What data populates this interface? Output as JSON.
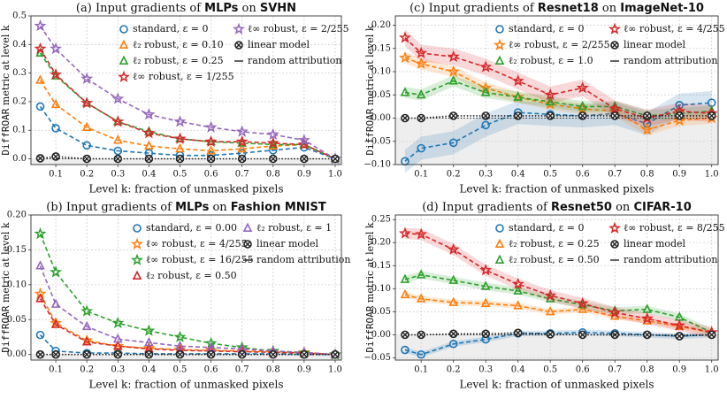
{
  "chart_data": [
    {
      "type": "line",
      "title": {
        "pre": "(a) Input gradients of ",
        "model": "MLPs",
        "mid": " on ",
        "dataset": "SVHN"
      },
      "xlabel": "Level k: fraction of unmasked pixels",
      "ylabel": {
        "mono": "DiffROAR",
        "rest": " metric at level k"
      },
      "ylim": [
        -0.02,
        0.5
      ],
      "yticks": [
        "0.0",
        "0.1",
        "0.2",
        "0.3",
        "0.4",
        "0.5"
      ],
      "ytick_values": [
        0,
        0.1,
        0.2,
        0.3,
        0.4,
        0.5
      ],
      "xticks": [
        "0.1",
        "0.2",
        "0.3",
        "0.4",
        "0.5",
        "0.6",
        "0.7",
        "0.8",
        "0.9",
        "1.0"
      ],
      "x": [
        0.05,
        0.1,
        0.2,
        0.3,
        0.4,
        0.5,
        0.6,
        0.7,
        0.8,
        0.9,
        1.0
      ],
      "legend_cols": 2,
      "series": [
        {
          "name": "standard, ε = 0",
          "color": "#1f77b4",
          "marker": "circle",
          "values": [
            0.183,
            0.107,
            0.047,
            0.028,
            0.02,
            0.012,
            0.012,
            0.02,
            0.03,
            0.04,
            0.0
          ]
        },
        {
          "name": "ℓ₂ robust, ε = 0.10",
          "color": "#ff7f0e",
          "marker": "triangle-up",
          "values": [
            0.275,
            0.19,
            0.11,
            0.065,
            0.045,
            0.035,
            0.028,
            0.035,
            0.045,
            0.05,
            0.0
          ]
        },
        {
          "name": "ℓ₂ robust, ε = 0.25",
          "color": "#2ca02c",
          "marker": "triangle-up",
          "values": [
            0.37,
            0.29,
            0.195,
            0.13,
            0.095,
            0.07,
            0.06,
            0.055,
            0.05,
            0.05,
            0.0
          ]
        },
        {
          "name": "ℓ∞ robust, ε = 1/255",
          "color": "#d62728",
          "marker": "star",
          "values": [
            0.385,
            0.295,
            0.195,
            0.13,
            0.09,
            0.07,
            0.06,
            0.06,
            0.055,
            0.05,
            0.0
          ]
        },
        {
          "name": "ℓ∞ robust, ε = 2/255",
          "color": "#9467bd",
          "marker": "star",
          "values": [
            0.465,
            0.385,
            0.28,
            0.21,
            0.155,
            0.13,
            0.11,
            0.095,
            0.085,
            0.065,
            0.0
          ]
        },
        {
          "name": "linear model",
          "color": "#222222",
          "marker": "x-circle",
          "values": [
            0.002,
            0.008,
            0.0,
            0.0,
            0.0,
            0.0,
            0.0,
            0.0,
            0.0,
            0.0,
            0.0
          ]
        },
        {
          "name": "random attribution",
          "color": "#222222",
          "marker": "none",
          "values": [
            0,
            0,
            0,
            0,
            0,
            0,
            0,
            0,
            0,
            0,
            0
          ]
        }
      ]
    },
    {
      "type": "line",
      "title": {
        "pre": "(c) Input gradients of ",
        "model": "Resnet18",
        "mid": " on ",
        "dataset": "ImageNet-10"
      },
      "xlabel": "Level k: fraction of unmasked pixels",
      "ylabel": {
        "mono": "DiffROAR",
        "rest": " metric at level k"
      },
      "ylim": [
        -0.1,
        0.22
      ],
      "yticks": [
        "−0.10",
        "−0.05",
        "0.00",
        "0.05",
        "0.10",
        "0.15",
        "0.20"
      ],
      "ytick_values": [
        -0.1,
        -0.05,
        0,
        0.05,
        0.1,
        0.15,
        0.2
      ],
      "xticks": [
        "0.1",
        "0.2",
        "0.3",
        "0.4",
        "0.5",
        "0.6",
        "0.7",
        "0.8",
        "0.9",
        "1.0"
      ],
      "x": [
        0.05,
        0.1,
        0.2,
        0.3,
        0.4,
        0.5,
        0.6,
        0.7,
        0.8,
        0.9,
        1.0
      ],
      "legend_cols": 2,
      "series": [
        {
          "name": "standard, ε = 0",
          "color": "#1f77b4",
          "marker": "circle",
          "band": 0.025,
          "values": [
            -0.093,
            -0.065,
            -0.053,
            -0.015,
            0.012,
            0.008,
            0.005,
            0.01,
            -0.012,
            0.028,
            0.033
          ]
        },
        {
          "name": "ℓ∞ robust, ε = 2/255",
          "color": "#ff7f0e",
          "marker": "star",
          "band": 0.012,
          "values": [
            0.13,
            0.117,
            0.1,
            0.065,
            0.045,
            0.03,
            0.02,
            0.015,
            -0.025,
            -0.005,
            0.0
          ]
        },
        {
          "name": "ℓ₂ robust, ε = 1.0",
          "color": "#2ca02c",
          "marker": "triangle-up",
          "band": 0.012,
          "values": [
            0.055,
            0.05,
            0.08,
            0.055,
            0.045,
            0.035,
            0.025,
            0.025,
            0.005,
            0.01,
            0.015
          ]
        },
        {
          "name": "ℓ∞ robust, ε = 4/255",
          "color": "#d62728",
          "marker": "star",
          "band": 0.018,
          "values": [
            0.173,
            0.14,
            0.132,
            0.11,
            0.08,
            0.05,
            0.065,
            0.02,
            0.0,
            0.015,
            0.01
          ]
        },
        {
          "name": "linear model",
          "color": "#222222",
          "marker": "x-circle",
          "values": [
            0.0,
            0.0,
            0.005,
            0.005,
            0.005,
            0.005,
            0.005,
            0.005,
            0.005,
            0.005,
            0.005
          ]
        },
        {
          "name": "random attribution",
          "color": "#222222",
          "marker": "none",
          "values": [
            0,
            0,
            0,
            0,
            0,
            0,
            0,
            0,
            0,
            0,
            0
          ]
        }
      ]
    },
    {
      "type": "line",
      "title": {
        "pre": "(b) Input gradients of ",
        "model": "MLPs",
        "mid": " on ",
        "dataset": "Fashion MNIST"
      },
      "xlabel": "Level k: fraction of unmasked pixels",
      "ylabel": {
        "mono": "DiffROAR",
        "rest": " metric at level k"
      },
      "ylim": [
        -0.008,
        0.2
      ],
      "yticks": [
        "0.00",
        "0.05",
        "0.10",
        "0.15",
        "0.20"
      ],
      "ytick_values": [
        0,
        0.05,
        0.1,
        0.15,
        0.2
      ],
      "xticks": [
        "0.1",
        "0.2",
        "0.3",
        "0.4",
        "0.5",
        "0.6",
        "0.7",
        "0.8",
        "0.9",
        "1.0"
      ],
      "x": [
        0.05,
        0.1,
        0.2,
        0.3,
        0.4,
        0.5,
        0.6,
        0.7,
        0.8,
        0.9,
        1.0
      ],
      "legend_cols": 2,
      "series": [
        {
          "name": "standard, ε = 0.00",
          "color": "#1f77b4",
          "marker": "circle",
          "values": [
            0.028,
            0.005,
            0.002,
            0.002,
            0.001,
            0.001,
            0.001,
            0.001,
            0.001,
            0.0,
            0.0
          ]
        },
        {
          "name": "ℓ∞ robust, ε = 4/255",
          "color": "#ff7f0e",
          "marker": "star",
          "values": [
            0.087,
            0.045,
            0.02,
            0.012,
            0.009,
            0.007,
            0.006,
            0.005,
            0.004,
            0.003,
            0.0
          ]
        },
        {
          "name": "ℓ∞ robust, ε = 16/255",
          "color": "#2ca02c",
          "marker": "star",
          "values": [
            0.173,
            0.118,
            0.062,
            0.045,
            0.034,
            0.025,
            0.016,
            0.01,
            0.005,
            0.002,
            0.0
          ]
        },
        {
          "name": "ℓ₂ robust, ε = 0.50",
          "color": "#d62728",
          "marker": "triangle-up",
          "values": [
            0.08,
            0.043,
            0.018,
            0.012,
            0.008,
            0.006,
            0.005,
            0.004,
            0.003,
            0.002,
            0.0
          ]
        },
        {
          "name": "ℓ₂ robust, ε = 1",
          "color": "#9467bd",
          "marker": "triangle-up",
          "values": [
            0.127,
            0.072,
            0.04,
            0.022,
            0.017,
            0.012,
            0.01,
            0.008,
            0.005,
            0.003,
            0.0
          ]
        },
        {
          "name": "linear model",
          "color": "#222222",
          "marker": "x-circle",
          "values": [
            0.0,
            0.0,
            0.0,
            0.0,
            0.0,
            0.0,
            0.0,
            0.0,
            0.0,
            0.0,
            0.0
          ]
        },
        {
          "name": "random attribution",
          "color": "#222222",
          "marker": "none",
          "values": [
            0,
            0,
            0,
            0,
            0,
            0,
            0,
            0,
            0,
            0,
            0
          ]
        }
      ]
    },
    {
      "type": "line",
      "title": {
        "pre": "(d) Input gradients of ",
        "model": "Resnet50",
        "mid": " on ",
        "dataset": "CIFAR-10"
      },
      "xlabel": "Level k: fraction of unmasked pixels",
      "ylabel": {
        "mono": "DiffROAR",
        "rest": " metric at level k"
      },
      "ylim": [
        -0.055,
        0.26
      ],
      "yticks": [
        "−0.05",
        "0.00",
        "0.05",
        "0.10",
        "0.15",
        "0.20",
        "0.25"
      ],
      "ytick_values": [
        -0.05,
        0,
        0.05,
        0.1,
        0.15,
        0.2,
        0.25
      ],
      "xticks": [
        "0.1",
        "0.2",
        "0.3",
        "0.4",
        "0.5",
        "0.6",
        "0.7",
        "0.8",
        "0.9",
        "1.0"
      ],
      "x": [
        0.05,
        0.1,
        0.2,
        0.3,
        0.4,
        0.5,
        0.6,
        0.7,
        0.8,
        0.9,
        1.0
      ],
      "legend_cols": 2,
      "series": [
        {
          "name": "standard, ε = 0",
          "color": "#1f77b4",
          "marker": "circle",
          "band": 0.006,
          "values": [
            -0.033,
            -0.043,
            -0.02,
            -0.01,
            0.003,
            0.003,
            0.005,
            0.003,
            0.0,
            -0.003,
            0.0
          ]
        },
        {
          "name": "ℓ₂ robust, ε = 0.25",
          "color": "#ff7f0e",
          "marker": "triangle-up",
          "band": 0.006,
          "values": [
            0.087,
            0.078,
            0.07,
            0.068,
            0.063,
            0.05,
            0.055,
            0.04,
            0.03,
            0.018,
            0.005
          ]
        },
        {
          "name": "ℓ₂ robust, ε = 0.50",
          "color": "#2ca02c",
          "marker": "triangle-up",
          "band": 0.008,
          "values": [
            0.12,
            0.13,
            0.118,
            0.105,
            0.095,
            0.078,
            0.065,
            0.052,
            0.055,
            0.038,
            0.005
          ]
        },
        {
          "name": "ℓ∞ robust, ε = 8/255",
          "color": "#d62728",
          "marker": "star",
          "band": 0.012,
          "values": [
            0.22,
            0.218,
            0.185,
            0.14,
            0.11,
            0.085,
            0.068,
            0.048,
            0.035,
            0.02,
            0.005
          ]
        },
        {
          "name": "linear model",
          "color": "#222222",
          "marker": "x-circle",
          "values": [
            0.0,
            0.0,
            0.002,
            0.002,
            0.004,
            0.001,
            0.0,
            0.0,
            0.0,
            -0.003,
            0.0
          ]
        },
        {
          "name": "random attribution",
          "color": "#222222",
          "marker": "none",
          "values": [
            0,
            0,
            0,
            0,
            0,
            0,
            0,
            0,
            0,
            0,
            0
          ]
        }
      ]
    }
  ]
}
